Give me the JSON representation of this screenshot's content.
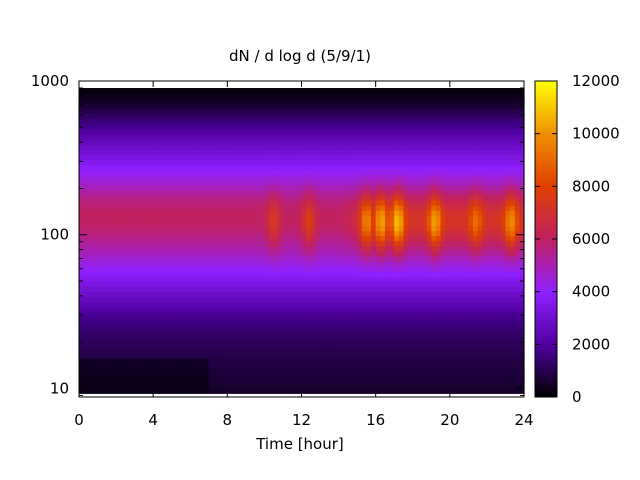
{
  "chart_data": {
    "type": "heatmap",
    "title": "dN / d log d (5/9/1)",
    "xlabel": "Time [hour]",
    "ylabel": "",
    "xlim": [
      0,
      24
    ],
    "ylim": [
      8.8,
      1000
    ],
    "y_scale": "log",
    "x_ticks": [
      "0",
      "4",
      "8",
      "12",
      "16",
      "20",
      "24"
    ],
    "x_tick_values": [
      0,
      4,
      8,
      12,
      16,
      20,
      24
    ],
    "y_ticks": [
      "10",
      "100",
      "1000"
    ],
    "y_tick_values": [
      10,
      100,
      1000
    ],
    "colorbar": {
      "range": [
        0,
        12000
      ],
      "ticks": [
        "0",
        "2000",
        "4000",
        "6000",
        "8000",
        "10000",
        "12000"
      ],
      "tick_values": [
        0,
        2000,
        4000,
        6000,
        8000,
        10000,
        12000
      ],
      "colormap": [
        "#000000",
        "#5000a0",
        "#9020ff",
        "#c02060",
        "#e04000",
        "#f09000",
        "#ffff00"
      ]
    },
    "data_extent": {
      "diameter_min": 9.3,
      "diameter_max": 900
    },
    "background_profile": {
      "diameters": [
        9.3,
        12,
        16,
        22,
        30,
        40,
        55,
        75,
        100,
        120,
        140,
        170,
        220,
        300,
        400,
        550,
        700,
        900
      ],
      "values": [
        500,
        700,
        900,
        1200,
        1800,
        2800,
        3800,
        4800,
        5600,
        6000,
        6000,
        5600,
        4600,
        3600,
        2600,
        1500,
        600,
        100
      ]
    },
    "event_series": [
      {
        "time": 10.5,
        "peak_value": 7500
      },
      {
        "time": 12.4,
        "peak_value": 7800
      },
      {
        "time": 15.5,
        "peak_value": 8800
      },
      {
        "time": 16.3,
        "peak_value": 9200
      },
      {
        "time": 17.2,
        "peak_value": 9800
      },
      {
        "time": 19.2,
        "peak_value": 9200
      },
      {
        "time": 21.4,
        "peak_value": 8000
      },
      {
        "time": 23.3,
        "peak_value": 8800
      }
    ]
  }
}
